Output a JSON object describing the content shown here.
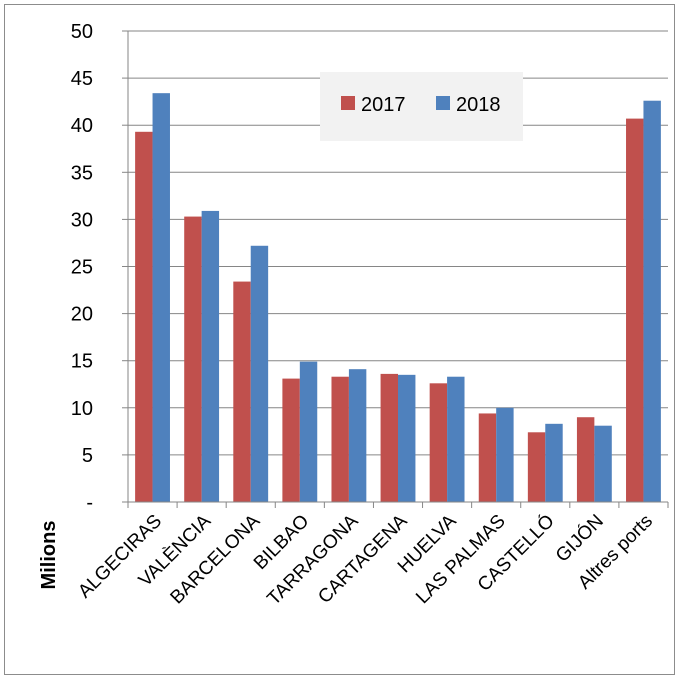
{
  "chart_data": {
    "type": "bar",
    "ylabel": "Milions",
    "ylim": [
      0,
      50
    ],
    "yticks": [
      0,
      5,
      10,
      15,
      20,
      25,
      30,
      35,
      40,
      45,
      50
    ],
    "ytick_labels": [
      "-",
      "5",
      "10",
      "15",
      "20",
      "25",
      "30",
      "35",
      "40",
      "45",
      "50"
    ],
    "grid": true,
    "legend": "top-center",
    "categories": [
      "ALGECIRAS",
      "VALÈNCIA",
      "BARCELONA",
      "BILBAO",
      "TARRAGONA",
      "CARTAGENA",
      "HUELVA",
      "LAS PALMAS",
      "CASTELLÓ",
      "GIJÓN",
      "Altres ports"
    ],
    "series": [
      {
        "name": "2017",
        "color": "#C0504D",
        "values": [
          39.3,
          30.3,
          23.4,
          13.1,
          13.3,
          13.6,
          12.6,
          9.4,
          7.4,
          9.0,
          40.7
        ]
      },
      {
        "name": "2018",
        "color": "#4F81BD",
        "values": [
          43.4,
          30.9,
          27.2,
          14.9,
          14.1,
          13.5,
          13.3,
          10.0,
          8.3,
          8.1,
          42.6
        ]
      }
    ]
  }
}
